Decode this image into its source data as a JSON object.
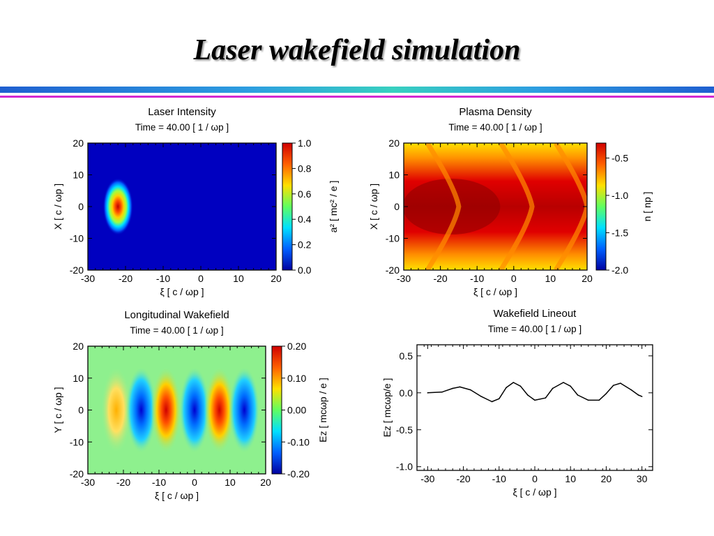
{
  "slide": {
    "title": "Laser wakefield simulation"
  },
  "colors": {
    "rule_blue": "#1f5fd0",
    "rule_cyan": "#38d0c0",
    "rule_magenta": "#d22ad2",
    "heatmap_scale": [
      "#0000c8",
      "#0090ff",
      "#00e0e0",
      "#e0e000",
      "#ff9000",
      "#e00000",
      "#8c0000"
    ]
  },
  "chart_data": [
    {
      "type": "heatmap",
      "title": "Laser Intensity",
      "subtitle": "Time =      40.00 [ 1 / ωp ]",
      "xlabel": "ξ [ c / ωp ]",
      "ylabel": "X [ c / ωp ]",
      "xlim": [
        -30,
        20
      ],
      "ylim": [
        -20,
        20
      ],
      "xticks": [
        "-30",
        "-20",
        "-10",
        "0",
        "10",
        "20"
      ],
      "yticks": [
        "-20",
        "-10",
        "0",
        "10",
        "20"
      ],
      "colorbar_label": "a² [ mc² / e ]",
      "colorbar_range": [
        0.0,
        1.0
      ],
      "colorbar_ticks": [
        "0.0",
        "0.2",
        "0.4",
        "0.6",
        "0.8",
        "1.0"
      ],
      "features": [
        {
          "shape": "gaussian-spot",
          "center": [
            -22,
            0
          ],
          "extent": [
            4,
            9
          ],
          "peak": 1.0
        }
      ]
    },
    {
      "type": "heatmap",
      "title": "Plasma Density",
      "subtitle": "Time =      40.00 [ 1 / ωp ]",
      "xlabel": "ξ [ c / ωp ]",
      "ylabel": "X [ c / ωp ]",
      "xlim": [
        -30,
        20
      ],
      "ylim": [
        -20,
        20
      ],
      "xticks": [
        "-30",
        "-20",
        "-10",
        "0",
        "10",
        "20"
      ],
      "yticks": [
        "-20",
        "-10",
        "0",
        "10",
        "20"
      ],
      "colorbar_label": "n [ np ]",
      "colorbar_range": [
        -2.0,
        -0.3
      ],
      "colorbar_ticks": [
        "-2.0",
        "-1.5",
        "-1.0",
        "-0.5"
      ],
      "features": [
        {
          "shape": "chevron-fronts",
          "apex_x": [
            -15,
            5,
            20
          ]
        }
      ]
    },
    {
      "type": "heatmap",
      "title": "Longitudinal Wakefield",
      "subtitle": "Time =      40.00 [ 1 / ωp ]",
      "xlabel": "ξ [ c / ωp ]",
      "ylabel": "Y [ c / ωp ]",
      "xlim": [
        -30,
        20
      ],
      "ylim": [
        -20,
        20
      ],
      "xticks": [
        "-30",
        "-20",
        "-10",
        "0",
        "10",
        "20"
      ],
      "yticks": [
        "-20",
        "-10",
        "0",
        "10",
        "20"
      ],
      "colorbar_label": "Ez [ mcωp / e ]",
      "colorbar_range": [
        -0.2,
        0.2
      ],
      "colorbar_ticks": [
        "-0.20",
        "-0.10",
        "0.00",
        "0.10",
        "0.20"
      ],
      "features": [
        {
          "shape": "crescent",
          "center_x": -22,
          "sign": "positive",
          "amplitude": 0.08
        },
        {
          "shape": "crescent",
          "center_x": -15,
          "sign": "negative",
          "amplitude": -0.15
        },
        {
          "shape": "crescent",
          "center_x": -8,
          "sign": "positive",
          "amplitude": 0.18
        },
        {
          "shape": "crescent",
          "center_x": 0,
          "sign": "negative",
          "amplitude": -0.15
        },
        {
          "shape": "crescent",
          "center_x": 7,
          "sign": "positive",
          "amplitude": 0.18
        },
        {
          "shape": "crescent",
          "center_x": 14,
          "sign": "negative",
          "amplitude": -0.15
        }
      ]
    },
    {
      "type": "line",
      "title": "Wakefield Lineout",
      "subtitle": "Time =      40.00 [ 1 / ωp ]",
      "xlabel": "ξ [ c / ωp ]",
      "ylabel": "Ez [ mcωp/e ]",
      "xlim": [
        -33,
        33
      ],
      "ylim": [
        -1.05,
        0.65
      ],
      "xticks": [
        "-30",
        "-20",
        "-10",
        "0",
        "10",
        "20",
        "30"
      ],
      "yticks": [
        "-1.0",
        "-0.5",
        "0.0",
        "0.5"
      ],
      "x": [
        -30,
        -26,
        -23,
        -21,
        -18,
        -15,
        -12,
        -10,
        -8,
        -6,
        -4,
        -2,
        0,
        3,
        5,
        8,
        10,
        12,
        15,
        18,
        20,
        22,
        24,
        27,
        29,
        30
      ],
      "y": [
        0.0,
        0.01,
        0.06,
        0.08,
        0.04,
        -0.05,
        -0.12,
        -0.08,
        0.07,
        0.14,
        0.09,
        -0.03,
        -0.1,
        -0.07,
        0.06,
        0.14,
        0.09,
        -0.03,
        -0.1,
        -0.1,
        -0.01,
        0.1,
        0.13,
        0.04,
        -0.03,
        -0.05
      ]
    }
  ]
}
